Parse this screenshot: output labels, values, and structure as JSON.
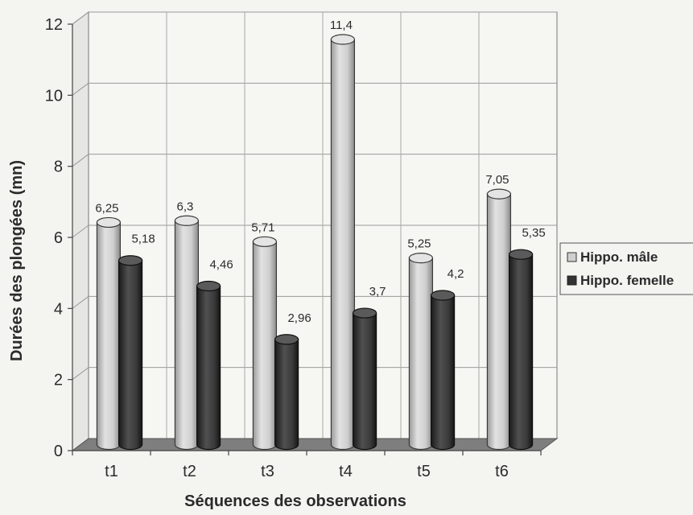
{
  "chart_data": {
    "type": "bar",
    "title": "",
    "xlabel": "Séquences des observations",
    "ylabel": "Durées des plongées (mn)",
    "categories": [
      "t1",
      "t2",
      "t3",
      "t4",
      "t5",
      "t6"
    ],
    "ylim": [
      0,
      12
    ],
    "yticks": [
      0,
      2,
      4,
      6,
      8,
      10,
      12
    ],
    "ytick_labels": [
      "0",
      "2",
      "4",
      "6",
      "8",
      "10",
      "12"
    ],
    "grid": true,
    "legend_position": "right",
    "series": [
      {
        "name": "Hippo. mâle",
        "color": "#c9c9c9",
        "values": [
          6.25,
          6.3,
          5.71,
          11.4,
          5.25,
          7.05
        ],
        "labels": [
          "6,25",
          "6,3",
          "5,71",
          "11,4",
          "5,25",
          "7,05"
        ]
      },
      {
        "name": "Hippo. femelle",
        "color": "#333333",
        "values": [
          5.18,
          4.46,
          2.96,
          3.7,
          4.2,
          5.35
        ],
        "labels": [
          "5,18",
          "4,46",
          "2,96",
          "3,7",
          "4,2",
          "5,35"
        ]
      }
    ]
  }
}
